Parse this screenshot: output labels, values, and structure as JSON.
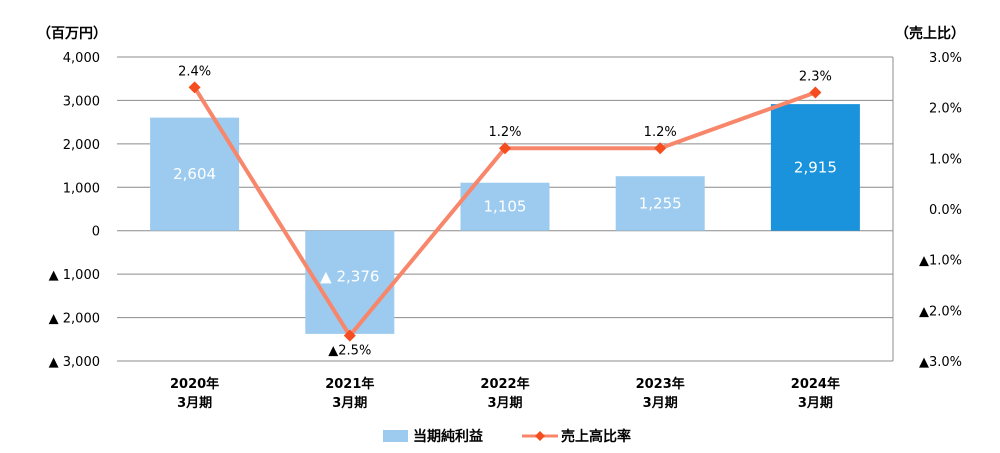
{
  "chart_data": {
    "type": "bar",
    "categories": [
      [
        "2020年",
        "3月期"
      ],
      [
        "2021年",
        "3月期"
      ],
      [
        "2022年",
        "3月期"
      ],
      [
        "2023年",
        "3月期"
      ],
      [
        "2024年",
        "3月期"
      ]
    ],
    "left_axis": {
      "unit_label": "（百万円）",
      "ylim": [
        -3000,
        4000
      ],
      "ticks": [
        {
          "value": 4000,
          "label": "4,000"
        },
        {
          "value": 3000,
          "label": "3,000"
        },
        {
          "value": 2000,
          "label": "2,000"
        },
        {
          "value": 1000,
          "label": "1,000"
        },
        {
          "value": 0,
          "label": "0"
        },
        {
          "value": -1000,
          "label": "▲ 1,000"
        },
        {
          "value": -2000,
          "label": "▲ 2,000"
        },
        {
          "value": -3000,
          "label": "▲ 3,000"
        }
      ]
    },
    "right_axis": {
      "unit_label": "（売上比）",
      "ylim": [
        -3.0,
        3.0
      ],
      "ticks": [
        {
          "value": 3.0,
          "label": "3.0%"
        },
        {
          "value": 2.0,
          "label": "2.0%"
        },
        {
          "value": 1.0,
          "label": "1.0%"
        },
        {
          "value": 0.0,
          "label": "0.0%"
        },
        {
          "value": -1.0,
          "label": "▲1.0%"
        },
        {
          "value": -2.0,
          "label": "▲2.0%"
        },
        {
          "value": -3.0,
          "label": "▲3.0%"
        }
      ]
    },
    "series": [
      {
        "name": "当期純利益",
        "type": "bar",
        "axis": "left",
        "values": [
          2604,
          -2376,
          1105,
          1255,
          2915
        ],
        "labels": [
          "2,604",
          "▲ 2,376",
          "1,105",
          "1,255",
          "2,915"
        ],
        "colors": [
          "#9ccbef",
          "#9ccbef",
          "#9ccbef",
          "#9ccbef",
          "#1a93dc"
        ]
      },
      {
        "name": "売上高比率",
        "type": "line",
        "axis": "right",
        "values": [
          2.4,
          -2.5,
          1.2,
          1.2,
          2.3
        ],
        "labels": [
          "2.4%",
          "▲2.5%",
          "1.2%",
          "1.2%",
          "2.3%"
        ],
        "line_color": "#f7866a",
        "marker_color": "#f44d1f"
      }
    ],
    "legend_position": "bottom",
    "gridlines": true
  }
}
